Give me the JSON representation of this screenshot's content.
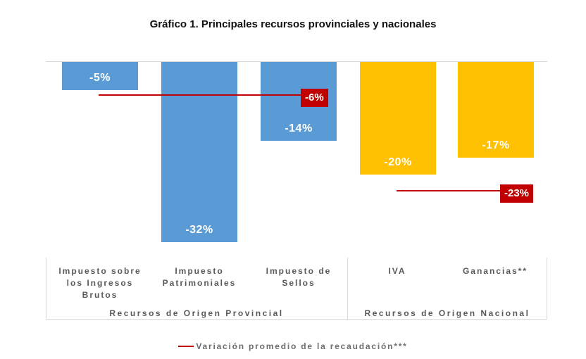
{
  "chart_data": {
    "type": "bar",
    "title": "Gráfico 1. Principales recursos provinciales y nacionales",
    "orientation": "vertical-negative",
    "value_unit": "%",
    "ylim": [
      -35,
      0
    ],
    "gridlines": false,
    "categories": [
      "Impuesto sobre los Ingresos Brutos",
      "Impuesto Patrimoniales",
      "Impuesto de Sellos",
      "IVA",
      "Ganancias**"
    ],
    "values": [
      -5,
      -32,
      -14,
      -20,
      -17
    ],
    "groups": [
      {
        "name": "Recursos de Origen Provincial",
        "bar_color": "#5b9bd5",
        "average": {
          "value": -6,
          "label": "-6%"
        },
        "bars": [
          {
            "category": "Impuesto sobre\nlos Ingresos\nBrutos",
            "value": -5,
            "label": "-5%"
          },
          {
            "category": "Impuesto\nPatrimoniales",
            "value": -32,
            "label": "-32%"
          },
          {
            "category": "Impuesto de\nSellos",
            "value": -14,
            "label": "-14%"
          }
        ]
      },
      {
        "name": "Recursos de Origen Nacional",
        "bar_color": "#ffc000",
        "average": {
          "value": -23,
          "label": "-23%"
        },
        "bars": [
          {
            "category": "IVA",
            "value": -20,
            "label": "-20%"
          },
          {
            "category": "Ganancias**",
            "value": -17,
            "label": "-17%"
          }
        ]
      }
    ],
    "legend": {
      "label": "Variación promedio de la recaudación***",
      "swatch": "red-line",
      "position": "bottom-center"
    },
    "colors": {
      "provincial_bars": "#5b9bd5",
      "national_bars": "#ffc000",
      "average_line": "#c00000",
      "axis_lines": "#d9d9d9",
      "axis_text": "#595959",
      "bar_value_text": "#ffffff"
    }
  }
}
